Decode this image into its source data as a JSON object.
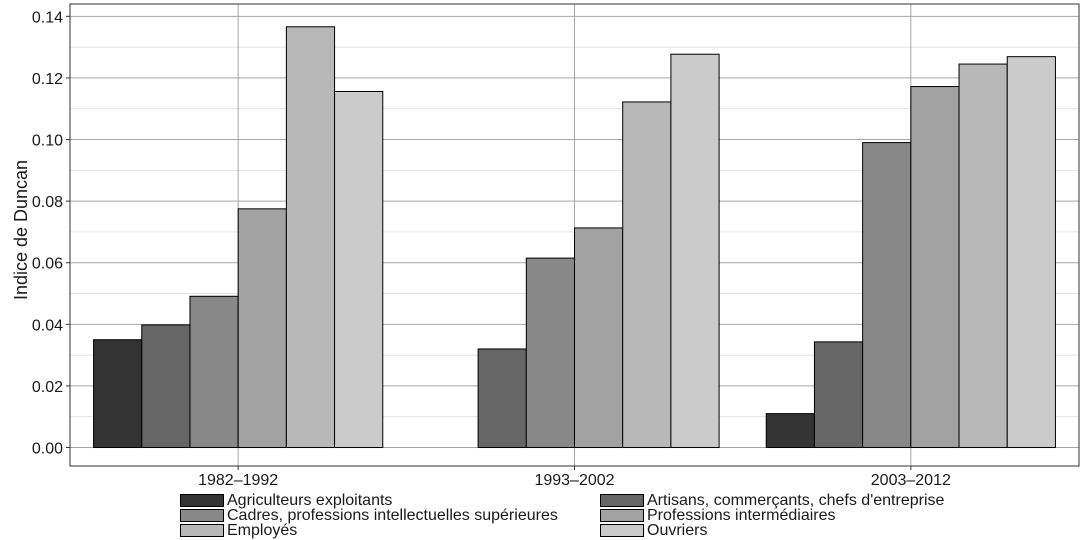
{
  "chart_data": {
    "type": "bar",
    "ylabel": "Indice de Duncan",
    "ylim": [
      -0.006,
      0.144
    ],
    "yticks": [
      "0.00",
      "0.02",
      "0.04",
      "0.06",
      "0.08",
      "0.10",
      "0.12",
      "0.14"
    ],
    "categories": [
      "1982–1992",
      "1993–2002",
      "2003–2012"
    ],
    "legend_position": "bottom",
    "grid": true,
    "series": [
      {
        "name": "Agriculteurs exploitants",
        "color": "#333333",
        "values": [
          0.035,
          null,
          0.011
        ]
      },
      {
        "name": "Artisans, commerçants, chefs d'entreprise",
        "color": "#666666",
        "values": [
          0.0398,
          0.032,
          0.0343
        ]
      },
      {
        "name": "Cadres, professions intellectuelles supérieures",
        "color": "#888888",
        "values": [
          0.0491,
          0.0615,
          0.099
        ]
      },
      {
        "name": "Professions intermédiaires",
        "color": "#a2a2a2",
        "values": [
          0.0775,
          0.0713,
          0.1172
        ]
      },
      {
        "name": "Employés",
        "color": "#b8b8b8",
        "values": [
          0.1366,
          0.1122,
          0.1245
        ]
      },
      {
        "name": "Ouvriers",
        "color": "#cbcbcb",
        "values": [
          0.1156,
          0.1277,
          0.1269
        ]
      }
    ]
  }
}
